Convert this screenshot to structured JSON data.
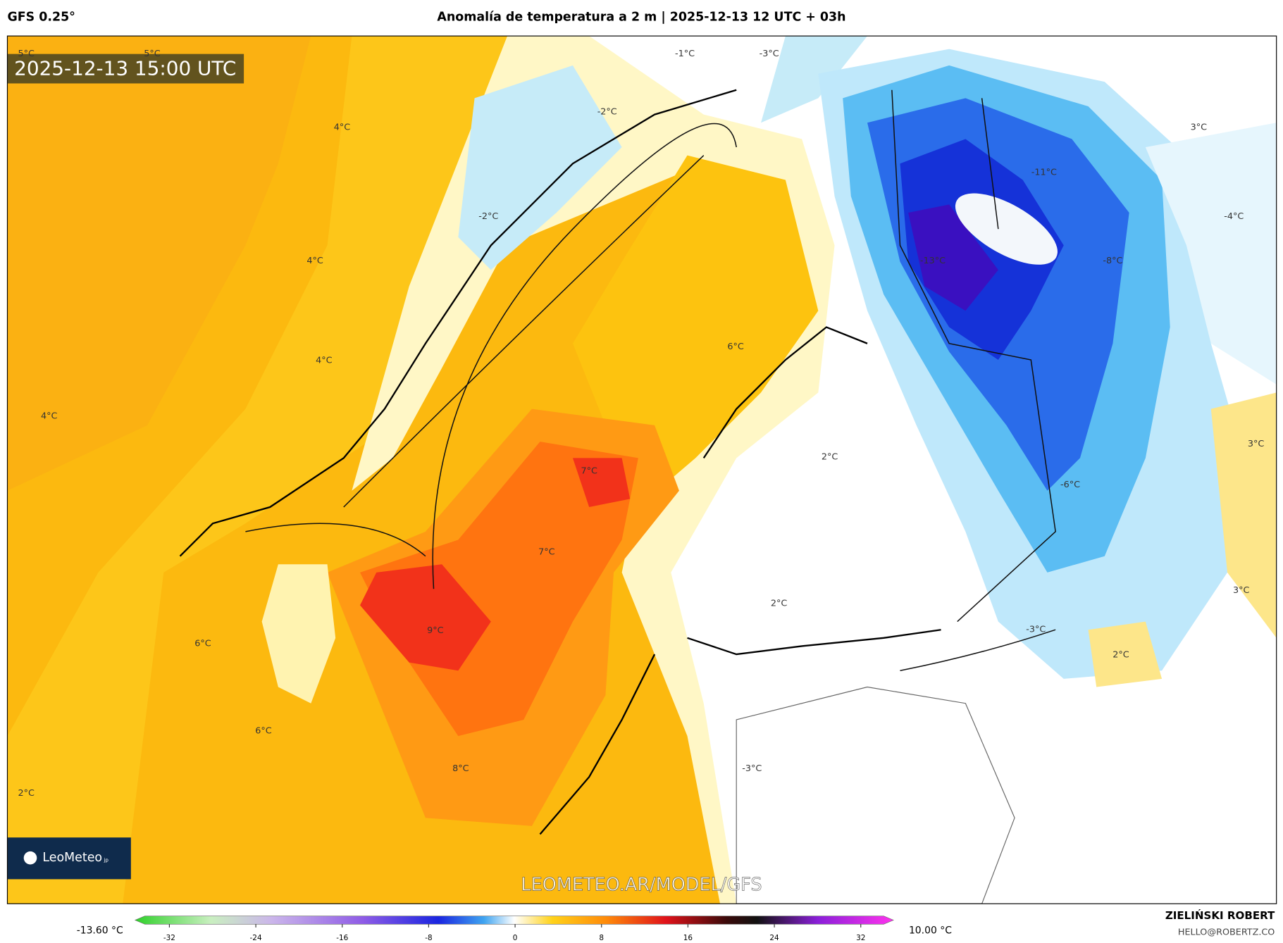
{
  "header": {
    "model": "GFS 0.25°",
    "title": "Anomalía de temperatura a 2 m | 2025-12-13 12 UTC + 03h"
  },
  "map": {
    "valid_time": "2025-12-13 15:00 UTC",
    "labels": [
      "5°C",
      "5°C",
      "-1°C",
      "-3°C",
      "4°C",
      "-2°C",
      "3°C",
      "-11°C",
      "-2°C",
      "-4°C",
      "4°C",
      "-13°C",
      "-8°C",
      "4°C",
      "6°C",
      "4°C",
      "3°C",
      "2°C",
      "7°C",
      "-6°C",
      "7°C",
      "3°C",
      "2°C",
      "9°C",
      "-3°C",
      "6°C",
      "2°C",
      "6°C",
      "8°C",
      "-3°C",
      "2°C"
    ],
    "logo": "LeoMeteo",
    "logo_suffix": "jp",
    "watermark": "LEOMETEO.AR/MODEL/GFS"
  },
  "colorbar": {
    "min_label": "-13.60 °C",
    "max_label": "10.00 °C",
    "ticks": [
      -32,
      -24,
      -16,
      -8,
      0,
      8,
      16,
      24,
      32
    ]
  },
  "credits": {
    "author": "ZIELIŃSKI ROBERT",
    "email": "HELLO@ROBERTZ.CO"
  }
}
